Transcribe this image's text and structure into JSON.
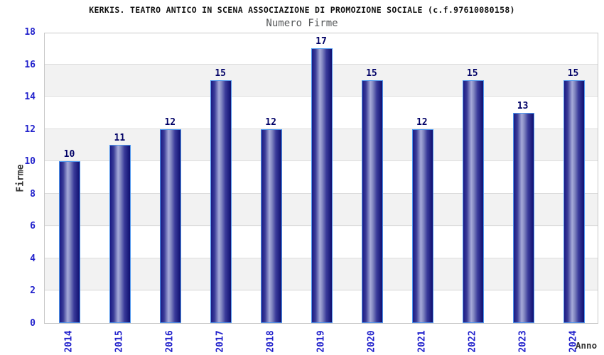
{
  "chart_data": {
    "type": "bar",
    "title": "KERKIS. TEATRO ANTICO IN SCENA ASSOCIAZIONE DI PROMOZIONE SOCIALE (c.f.97610080158)",
    "subtitle": "Numero Firme",
    "xlabel": "Anno",
    "ylabel": "Firme",
    "categories": [
      "2014",
      "2015",
      "2016",
      "2017",
      "2018",
      "2019",
      "2020",
      "2021",
      "2022",
      "2023",
      "2024"
    ],
    "values": [
      10,
      11,
      12,
      15,
      12,
      17,
      15,
      12,
      15,
      13,
      15
    ],
    "bar_labels": true,
    "ylim": [
      0,
      18
    ],
    "ytick_step": 2,
    "yticks": [
      "0",
      "2",
      "4",
      "6",
      "8",
      "10",
      "12",
      "14",
      "16",
      "18"
    ],
    "grid": true,
    "legend_position": "none",
    "colors": {
      "tick_label": "#2222cc",
      "value_label": "#000066",
      "axis_title": "#333333",
      "title": "#111111",
      "subtitle": "#555759",
      "band_gray": "#f2f2f2",
      "grid_line": "#dcdcdc",
      "plot_border": "#c8c8c8",
      "bar_border": "#4f97ee",
      "bar_dark": "#16167d",
      "bar_light": "#a6aad9"
    }
  }
}
